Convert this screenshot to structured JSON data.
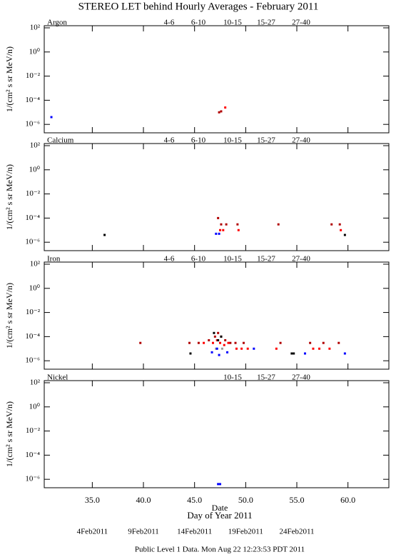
{
  "title": "STEREO LET behind Hourly Averages - February 2011",
  "footer": "Public Level 1 Data. Mon Aug 22 12:23:53 PDT 2011",
  "chart_data": [
    {
      "type": "scatter",
      "title": "Argon",
      "ylabel": "1/(cm² s sr MeV/n)",
      "log_y": true,
      "xlim": [
        30.3,
        64
      ],
      "ylim": [
        2e-07,
        150
      ],
      "xticks": [
        {
          "value": 35,
          "label": "35.0"
        },
        {
          "value": 40,
          "label": "40.0"
        },
        {
          "value": 45,
          "label": "45.0"
        },
        {
          "value": 50,
          "label": "50.0"
        },
        {
          "value": 55,
          "label": "55.0"
        },
        {
          "value": 60,
          "label": "60.0"
        }
      ],
      "yticks": [
        {
          "value": 100,
          "label": "10²"
        },
        {
          "value": 1,
          "label": "10⁰"
        },
        {
          "value": 0.01,
          "label": "10⁻²"
        },
        {
          "value": 0.0001,
          "label": "10⁻⁴"
        },
        {
          "value": 1e-06,
          "label": "10⁻⁶"
        }
      ],
      "series": [
        {
          "name": "4-6",
          "color": "#b00000",
          "x": [
            47.4,
            47.6
          ],
          "values": [
            1e-05,
            1.2e-05
          ]
        },
        {
          "name": "6-10",
          "color": "#ff0000",
          "x": [
            48.0
          ],
          "values": [
            2.5e-05
          ]
        },
        {
          "name": "10-15",
          "color": "#999999",
          "x": [],
          "values": []
        },
        {
          "name": "15-27",
          "color": "#0000ff",
          "x": [
            31.0
          ],
          "values": [
            4e-06
          ]
        },
        {
          "name": "27-40",
          "color": "#000000",
          "x": [],
          "values": []
        }
      ]
    },
    {
      "type": "scatter",
      "title": "Calcium",
      "ylabel": "1/(cm² s sr MeV/n)",
      "log_y": true,
      "xlim": [
        30.3,
        64
      ],
      "ylim": [
        2e-07,
        150
      ],
      "xticks": [
        {
          "value": 35,
          "label": "35.0"
        },
        {
          "value": 40,
          "label": "40.0"
        },
        {
          "value": 45,
          "label": "45.0"
        },
        {
          "value": 50,
          "label": "50.0"
        },
        {
          "value": 55,
          "label": "55.0"
        },
        {
          "value": 60,
          "label": "60.0"
        }
      ],
      "yticks": [
        {
          "value": 100,
          "label": "10²"
        },
        {
          "value": 1,
          "label": "10⁰"
        },
        {
          "value": 0.01,
          "label": "10⁻²"
        },
        {
          "value": 0.0001,
          "label": "10⁻⁴"
        },
        {
          "value": 1e-06,
          "label": "10⁻⁶"
        }
      ],
      "series": [
        {
          "name": "4-6",
          "color": "#b00000",
          "x": [
            47.3,
            47.6,
            48.1,
            49.2,
            53.2,
            58.4,
            59.2
          ],
          "values": [
            0.0001,
            3e-05,
            3e-05,
            3e-05,
            3e-05,
            3e-05,
            3e-05
          ]
        },
        {
          "name": "6-10",
          "color": "#ff0000",
          "x": [
            47.5,
            47.8,
            49.3,
            59.3
          ],
          "values": [
            1e-05,
            1e-05,
            1e-05,
            1e-05
          ]
        },
        {
          "name": "10-15",
          "color": "#999999",
          "x": [],
          "values": []
        },
        {
          "name": "15-27",
          "color": "#0000ff",
          "x": [
            47.1,
            47.4
          ],
          "values": [
            5e-06,
            5e-06
          ]
        },
        {
          "name": "27-40",
          "color": "#000000",
          "x": [
            36.2,
            59.7
          ],
          "values": [
            4e-06,
            4e-06
          ]
        }
      ]
    },
    {
      "type": "scatter",
      "title": "Iron",
      "ylabel": "1/(cm² s sr MeV/n)",
      "log_y": true,
      "xlim": [
        30.3,
        64
      ],
      "ylim": [
        2e-07,
        150
      ],
      "xticks": [
        {
          "value": 35,
          "label": "35.0"
        },
        {
          "value": 40,
          "label": "40.0"
        },
        {
          "value": 45,
          "label": "45.0"
        },
        {
          "value": 50,
          "label": "50.0"
        },
        {
          "value": 55,
          "label": "55.0"
        },
        {
          "value": 60,
          "label": "60.0"
        }
      ],
      "yticks": [
        {
          "value": 100,
          "label": "10²"
        },
        {
          "value": 1,
          "label": "10⁰"
        },
        {
          "value": 0.01,
          "label": "10⁻²"
        },
        {
          "value": 0.0001,
          "label": "10⁻⁴"
        },
        {
          "value": 1e-06,
          "label": "10⁻⁶"
        }
      ],
      "series": [
        {
          "name": "4-6",
          "color": "#b00000",
          "x": [
            39.7,
            44.5,
            45.4,
            46.4,
            47.0,
            47.3,
            47.6,
            48.0,
            48.5,
            49.0,
            49.8,
            53.4,
            56.3,
            57.6,
            59.1
          ],
          "values": [
            3e-05,
            3e-05,
            3e-05,
            5e-05,
            0.0001,
            0.0002,
            0.0001,
            5e-05,
            3e-05,
            3e-05,
            3e-05,
            3e-05,
            3e-05,
            3e-05,
            3e-05
          ]
        },
        {
          "name": "6-10",
          "color": "#ff0000",
          "x": [
            45.9,
            46.8,
            47.2,
            47.5,
            47.9,
            48.3,
            49.1,
            49.6,
            50.2,
            53.0,
            56.6,
            57.2,
            58.2
          ],
          "values": [
            3e-05,
            3e-05,
            5e-05,
            3e-05,
            2e-05,
            3e-05,
            1e-05,
            1e-05,
            1e-05,
            1e-05,
            1e-05,
            1e-05,
            1e-05
          ]
        },
        {
          "name": "10-15",
          "color": "#999999",
          "x": [
            47.1,
            47.7
          ],
          "values": [
            1e-05,
            1e-05
          ]
        },
        {
          "name": "15-27",
          "color": "#0000ff",
          "x": [
            46.7,
            47.2,
            47.4,
            48.2,
            50.8,
            55.8,
            59.7
          ],
          "values": [
            5e-06,
            1e-05,
            3e-06,
            5e-06,
            1e-05,
            4e-06,
            4e-06
          ]
        },
        {
          "name": "27-40",
          "color": "#000000",
          "x": [
            44.6,
            46.9,
            47.3,
            47.6,
            54.5,
            54.7
          ],
          "values": [
            4e-06,
            0.0002,
            5e-05,
            0.0001,
            4e-06,
            4e-06
          ]
        }
      ]
    },
    {
      "type": "scatter",
      "title": "Nickel",
      "ylabel": "1/(cm² s sr MeV/n)",
      "log_y": true,
      "xlim": [
        30.3,
        64
      ],
      "ylim": [
        2e-07,
        150
      ],
      "xticks": [
        {
          "value": 35,
          "label": "35.0"
        },
        {
          "value": 40,
          "label": "40.0"
        },
        {
          "value": 45,
          "label": "45.0"
        },
        {
          "value": 50,
          "label": "50.0"
        },
        {
          "value": 55,
          "label": "55.0"
        },
        {
          "value": 60,
          "label": "60.0"
        }
      ],
      "yticks": [
        {
          "value": 100,
          "label": "10²"
        },
        {
          "value": 1,
          "label": "10⁰"
        },
        {
          "value": 0.01,
          "label": "10⁻²"
        },
        {
          "value": 0.0001,
          "label": "10⁻⁴"
        },
        {
          "value": 1e-06,
          "label": "10⁻⁶"
        }
      ],
      "series": [
        {
          "name": "10-15",
          "color": "#999999",
          "x": [],
          "values": []
        },
        {
          "name": "15-27",
          "color": "#0000ff",
          "x": [
            47.3,
            47.5
          ],
          "values": [
            4e-07,
            4e-07
          ]
        },
        {
          "name": "27-40",
          "color": "#000000",
          "x": [],
          "values": []
        }
      ],
      "xlabel": "Day of Year 2011",
      "date_label": "Date",
      "date_ticks": [
        {
          "value": 35,
          "label": "4Feb2011"
        },
        {
          "value": 40,
          "label": "9Feb2011"
        },
        {
          "value": 45,
          "label": "14Feb2011"
        },
        {
          "value": 50,
          "label": "19Feb2011"
        },
        {
          "value": 55,
          "label": "24Feb2011"
        }
      ]
    }
  ]
}
